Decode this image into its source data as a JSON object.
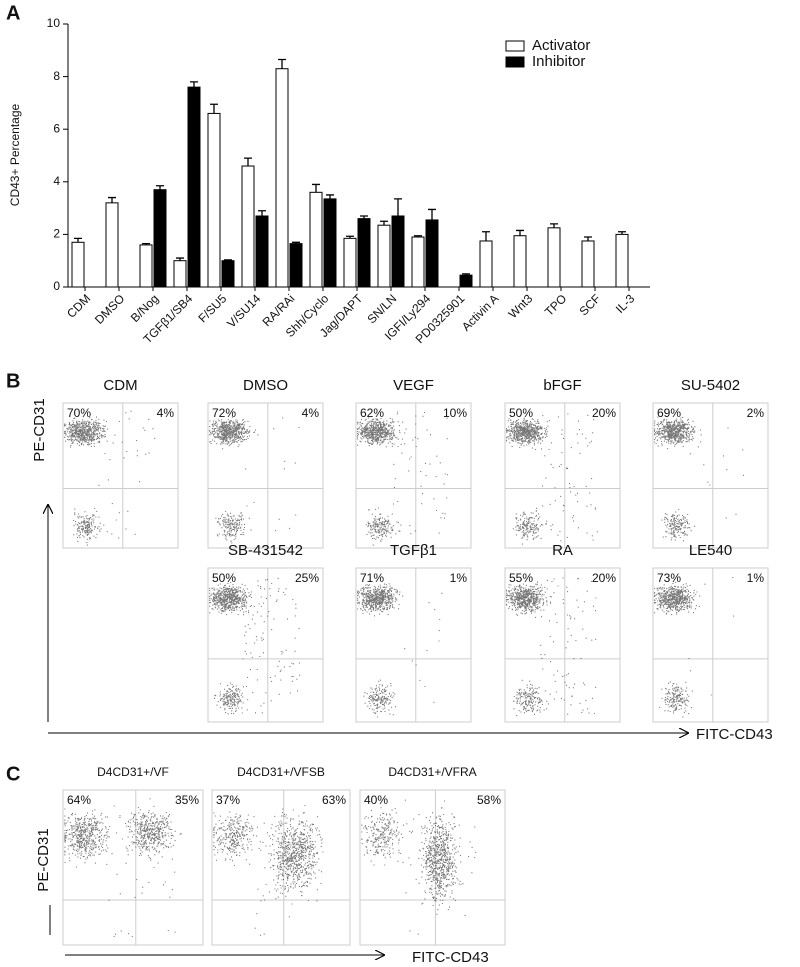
{
  "chart_data": {
    "type": "bar",
    "panel_label": "A",
    "y_label": "CD43+ Percentage",
    "categories": [
      "CDM",
      "DMSO",
      "B/Nog",
      "TGFβ1/SB4",
      "F/SU5",
      "V/SU14",
      "RA/RAi",
      "Shh/Cyclo",
      "Jag/DAPT",
      "SN/LN",
      "IGFI/Ly294",
      "PD0325901",
      "Activin A",
      "Wnt3",
      "TPO",
      "SCF",
      "IL-3"
    ],
    "series": [
      {
        "name": "Activator",
        "color": "#ffffff",
        "values": [
          1.7,
          3.2,
          1.6,
          1.0,
          6.6,
          4.6,
          8.3,
          3.6,
          1.85,
          2.35,
          1.9,
          null,
          1.75,
          1.95,
          2.25,
          1.75,
          2.0
        ],
        "errors": [
          0.15,
          0.2,
          0.05,
          0.1,
          0.35,
          0.3,
          0.35,
          0.3,
          0.08,
          0.15,
          0.05,
          null,
          0.35,
          0.2,
          0.15,
          0.15,
          0.1
        ]
      },
      {
        "name": "Inhibitor",
        "color": "#000000",
        "values": [
          null,
          null,
          3.7,
          7.6,
          1.0,
          2.7,
          1.65,
          3.35,
          2.6,
          2.7,
          2.55,
          0.45,
          null,
          null,
          null,
          null,
          null
        ],
        "errors": [
          null,
          null,
          0.15,
          0.2,
          0.03,
          0.2,
          0.05,
          0.15,
          0.1,
          0.65,
          0.4,
          0.05,
          null,
          null,
          null,
          null,
          null
        ]
      }
    ],
    "ylim": [
      0,
      10
    ],
    "yticks": [
      0,
      2,
      4,
      6,
      8,
      10
    ],
    "legend": "top-right"
  },
  "flow_panels": [
    {
      "label": "B",
      "y_axis": "PE-CD31",
      "x_axis": "FITC-CD43",
      "plots": [
        {
          "title": "CDM",
          "upper_left": "70%",
          "upper_right": "4%"
        },
        {
          "title": "DMSO",
          "upper_left": "72%",
          "upper_right": "4%"
        },
        {
          "title": "VEGF",
          "upper_left": "62%",
          "upper_right": "10%"
        },
        {
          "title": "bFGF",
          "upper_left": "50%",
          "upper_right": "20%"
        },
        {
          "title": "SU-5402",
          "upper_left": "69%",
          "upper_right": "2%"
        },
        {
          "title": "SB-431542",
          "upper_left": "50%",
          "upper_right": "25%"
        },
        {
          "title": "TGFβ1",
          "upper_left": "71%",
          "upper_right": "1%"
        },
        {
          "title": "RA",
          "upper_left": "55%",
          "upper_right": "20%"
        },
        {
          "title": "LE540",
          "upper_left": "73%",
          "upper_right": "1%"
        }
      ]
    },
    {
      "label": "C",
      "y_axis": "PE-CD31",
      "x_axis": "FITC-CD43",
      "plots": [
        {
          "title": "D4CD31+/VF",
          "upper_left": "64%",
          "upper_right": "35%"
        },
        {
          "title": "D4CD31+/VFSB",
          "upper_left": "37%",
          "upper_right": "63%"
        },
        {
          "title": "D4CD31+/VFRA",
          "upper_left": "40%",
          "upper_right": "58%"
        }
      ]
    }
  ]
}
